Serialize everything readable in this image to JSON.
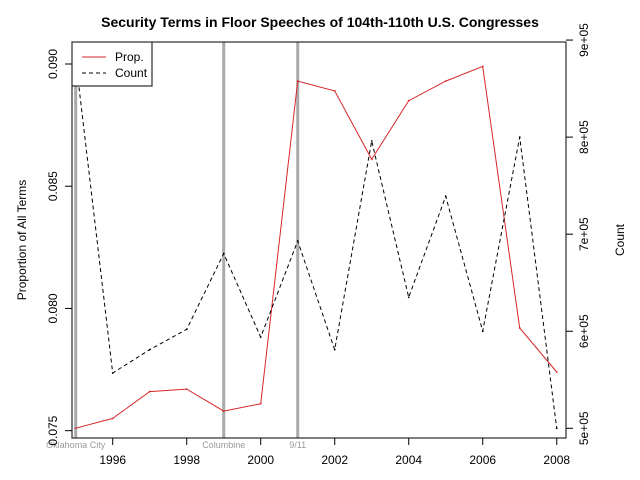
{
  "chart_data": {
    "type": "line",
    "title": "Security Terms in Floor Speeches of 104th-110th U.S. Congresses",
    "ylabel": "Proportion of All Terms",
    "y2label": "Count",
    "xlabel": "",
    "x": [
      1995,
      1996,
      1997,
      1998,
      1999,
      2000,
      2001,
      2002,
      2003,
      2004,
      2005,
      2006,
      2007,
      2008
    ],
    "xlim": [
      1994.9,
      2008.25
    ],
    "ylim": [
      0.0747,
      0.0909
    ],
    "y2lim": [
      490000,
      898000
    ],
    "xticks": [
      1996,
      1998,
      2000,
      2002,
      2004,
      2006,
      2008
    ],
    "yticks": [
      0.075,
      0.08,
      0.085,
      0.09
    ],
    "ytick_labels": [
      "0.075",
      "0.080",
      "0.085",
      "0.090"
    ],
    "y2ticks": [
      500000,
      600000,
      700000,
      800000,
      900000
    ],
    "y2tick_labels": [
      "5e+05",
      "6e+05",
      "7e+05",
      "8e+05",
      "9e+05"
    ],
    "series": [
      {
        "name": "Prop.",
        "axis": "left",
        "style": "solid",
        "color": "#d62728",
        "values": [
          0.0751,
          0.0755,
          0.0766,
          0.0767,
          0.0758,
          0.0761,
          0.0893,
          0.0889,
          0.0861,
          0.0885,
          0.0893,
          0.0899,
          0.0792,
          0.0774
        ]
      },
      {
        "name": "Count",
        "axis": "right",
        "style": "dashed",
        "color": "#000000",
        "values": [
          880000,
          557000,
          581000,
          602000,
          680000,
          594000,
          693000,
          581000,
          796000,
          635000,
          739000,
          600000,
          800000,
          500000
        ]
      }
    ],
    "events": [
      {
        "x": 1995,
        "label": "Oklahoma City"
      },
      {
        "x": 1999,
        "label": "Columbine"
      },
      {
        "x": 2001,
        "label": "9/11"
      }
    ],
    "event_color": "#aaaaaa",
    "legend_position": "top-left",
    "grid": false
  }
}
